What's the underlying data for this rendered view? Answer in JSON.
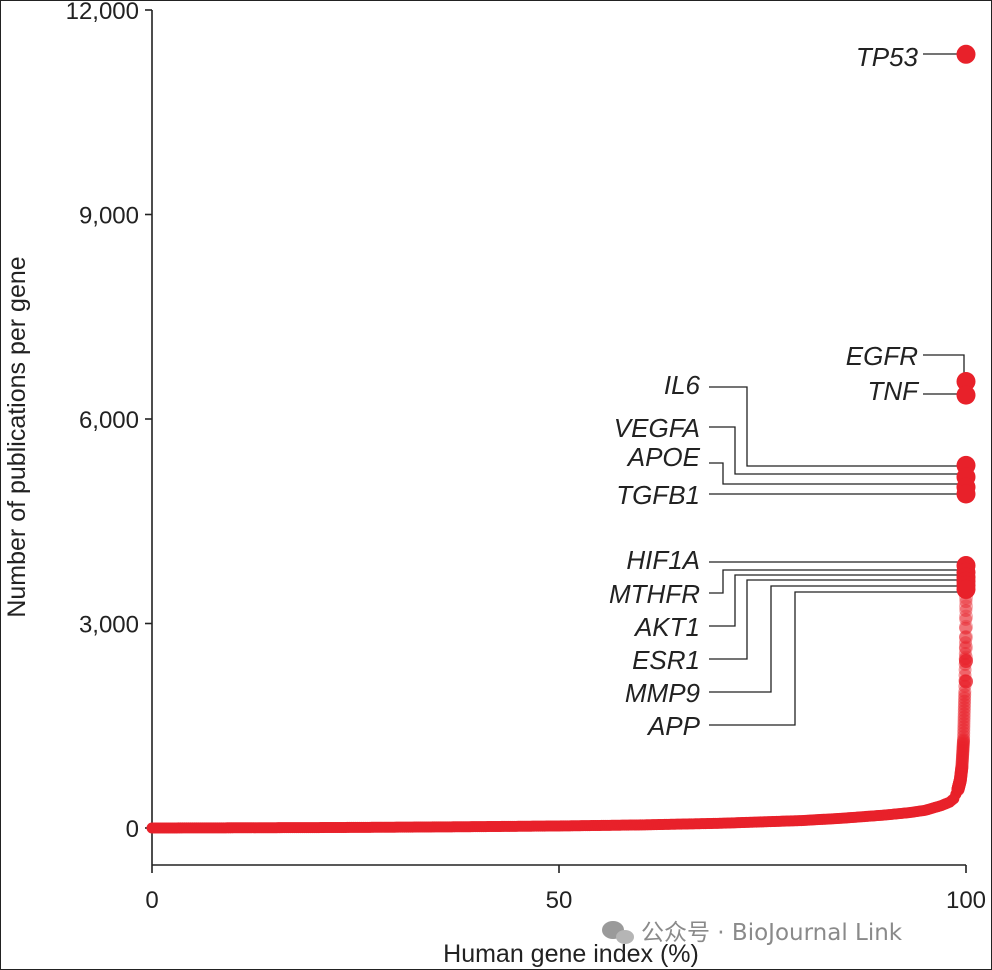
{
  "chart_data": {
    "type": "scatter",
    "xlabel": "Human gene index (%)",
    "ylabel": "Number of publications per gene",
    "xlim": [
      0,
      100
    ],
    "ylim": [
      -350,
      12000
    ],
    "xticks": [
      0,
      50,
      100
    ],
    "xtick_labels": [
      "0",
      "50",
      "100"
    ],
    "yticks": [
      0,
      3000,
      6000,
      9000,
      12000
    ],
    "ytick_labels": [
      "0",
      "3,000",
      "6,000",
      "9,000",
      "12,000"
    ],
    "marker_color": "#e8212a",
    "curve": {
      "x": [
        0,
        10,
        20,
        30,
        40,
        50,
        60,
        70,
        80,
        85,
        90,
        93,
        95,
        97,
        98,
        98.5,
        99,
        99.3,
        99.5,
        99.7,
        99.85,
        99.95,
        100
      ],
      "y": [
        0,
        3,
        6,
        12,
        20,
        30,
        45,
        70,
        110,
        145,
        190,
        225,
        260,
        330,
        380,
        430,
        560,
        700,
        900,
        1300,
        2000,
        2800,
        3450
      ]
    },
    "annotated_genes": [
      {
        "name": "TP53",
        "x": 100,
        "y": 11350
      },
      {
        "name": "EGFR",
        "x": 100,
        "y": 6550
      },
      {
        "name": "TNF",
        "x": 100,
        "y": 6350
      },
      {
        "name": "IL6",
        "x": 100,
        "y": 5320
      },
      {
        "name": "VEGFA",
        "x": 100,
        "y": 5150
      },
      {
        "name": "APOE",
        "x": 100,
        "y": 5000
      },
      {
        "name": "TGFB1",
        "x": 100,
        "y": 4900
      },
      {
        "name": "HIF1A",
        "x": 100,
        "y": 3850
      },
      {
        "name": "MTHFR",
        "x": 100,
        "y": 3750
      },
      {
        "name": "AKT1",
        "x": 100,
        "y": 3680
      },
      {
        "name": "ESR1",
        "x": 100,
        "y": 3620
      },
      {
        "name": "MMP9",
        "x": 100,
        "y": 3560
      },
      {
        "name": "APP",
        "x": 100,
        "y": 3500
      }
    ]
  },
  "watermark": "公众号 · BioJournal Link"
}
